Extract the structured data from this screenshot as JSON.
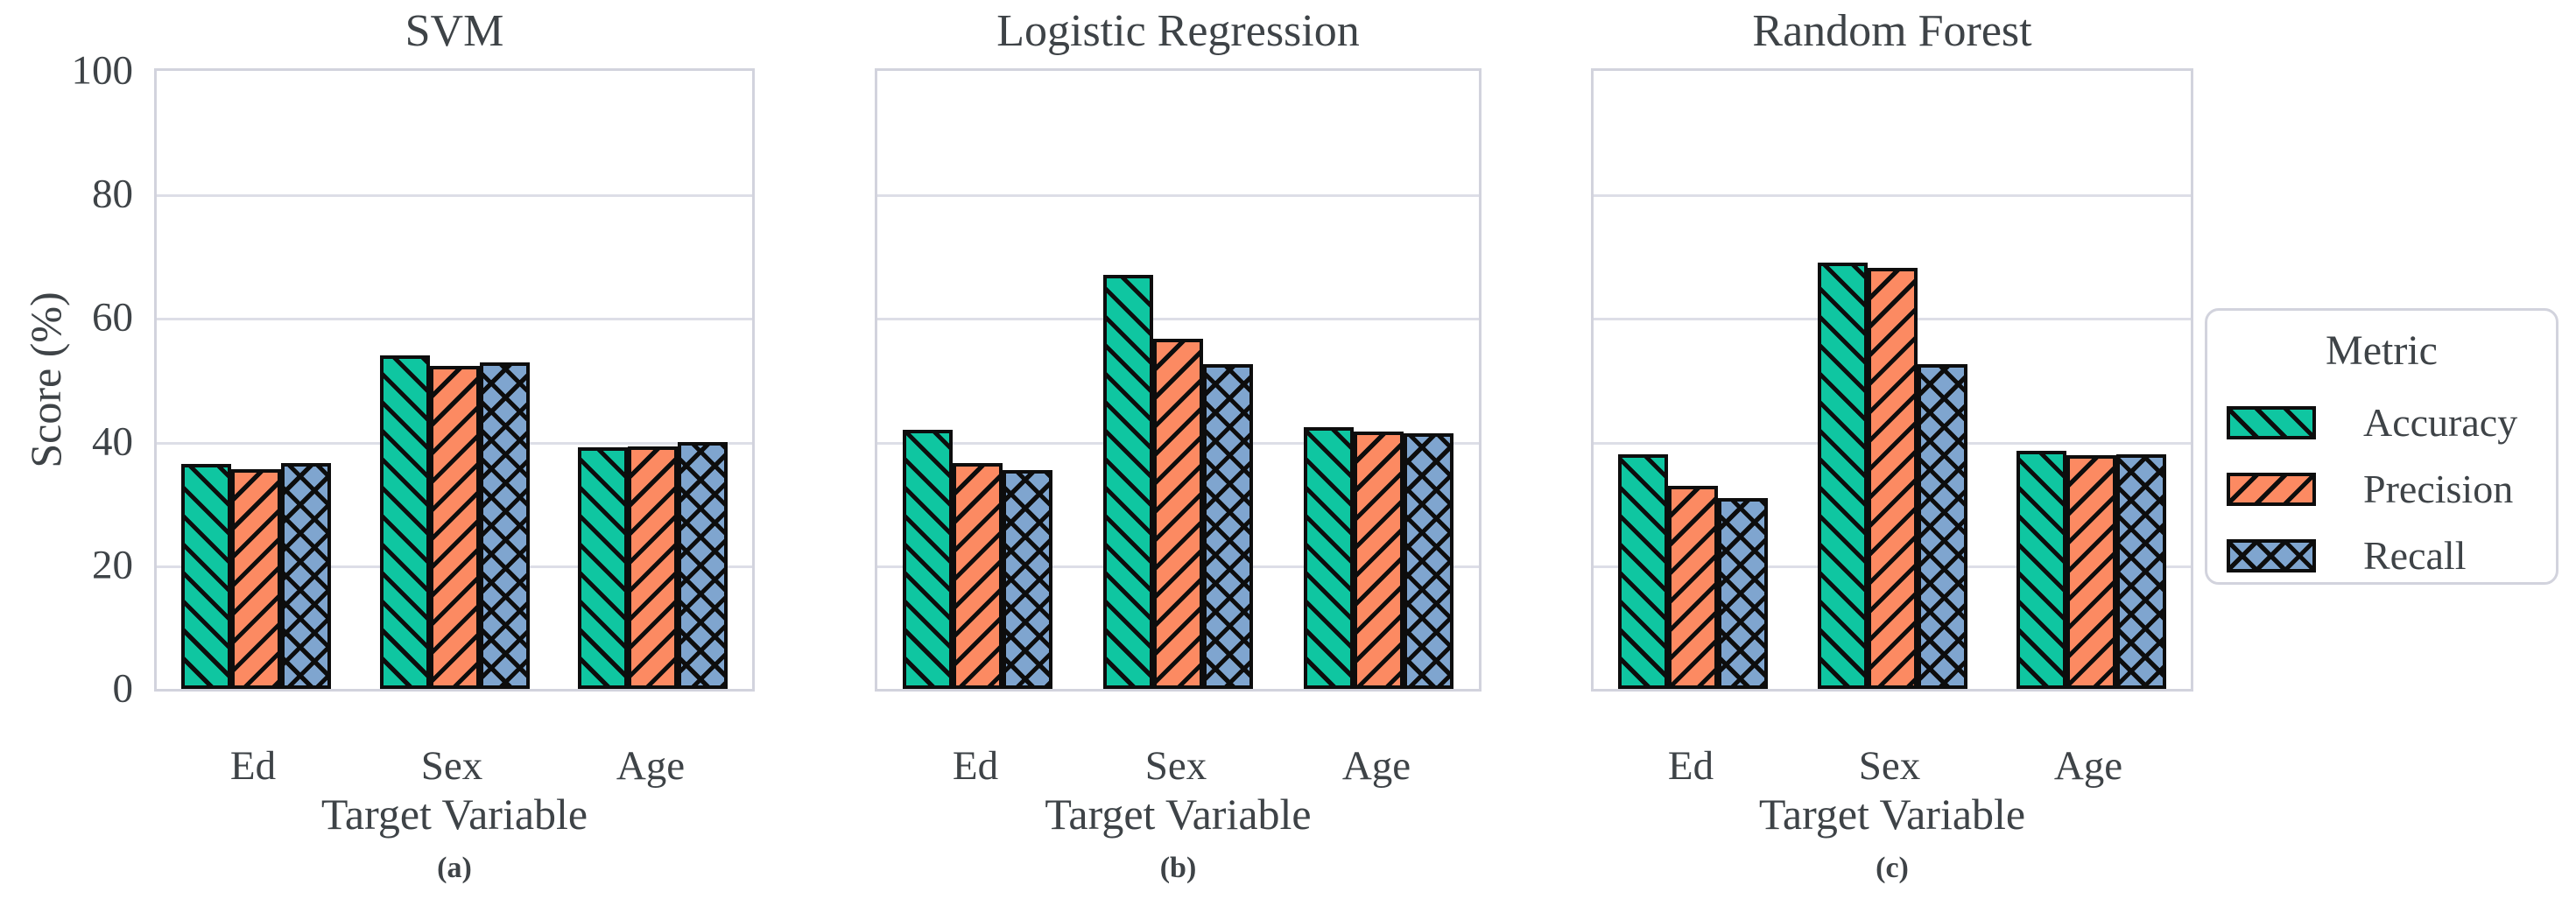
{
  "figure": {
    "ylabel": "Score (%)",
    "legend": {
      "title": "Metric",
      "entries": [
        {
          "label": "Accuracy",
          "color": "#0fc6a1",
          "hatch": "fwd"
        },
        {
          "label": "Precision",
          "color": "#fc8a62",
          "hatch": "back"
        },
        {
          "label": "Recall",
          "color": "#7fa5cf",
          "hatch": "cross"
        }
      ]
    },
    "colors": {
      "grid": "#dddee7",
      "frame": "#d2d3dd",
      "text": "#3e4347",
      "bar_edge": "#0d0d0d"
    }
  },
  "chart_data": [
    {
      "type": "bar",
      "title": "SVM",
      "caption": "(a)",
      "xlabel": "Target Variable",
      "ylabel": "Score (%)",
      "categories": [
        "Ed",
        "Sex",
        "Age"
      ],
      "y_ticks": [
        0,
        20,
        40,
        60,
        80,
        100
      ],
      "ylim": [
        0,
        100
      ],
      "grid": true,
      "legend_position": "right-of-figure",
      "series": [
        {
          "name": "Accuracy",
          "values": [
            36.4,
            53.9,
            39.1
          ]
        },
        {
          "name": "Precision",
          "values": [
            35.6,
            52.2,
            39.2
          ]
        },
        {
          "name": "Recall",
          "values": [
            36.5,
            52.9,
            39.9
          ]
        }
      ]
    },
    {
      "type": "bar",
      "title": "Logistic Regression",
      "caption": "(b)",
      "xlabel": "Target Variable",
      "ylabel": "Score (%)",
      "categories": [
        "Ed",
        "Sex",
        "Age"
      ],
      "y_ticks": [
        0,
        20,
        40,
        60,
        80,
        100
      ],
      "ylim": [
        0,
        100
      ],
      "grid": true,
      "series": [
        {
          "name": "Accuracy",
          "values": [
            41.9,
            67.0,
            42.3
          ]
        },
        {
          "name": "Precision",
          "values": [
            36.5,
            56.7,
            41.6
          ]
        },
        {
          "name": "Recall",
          "values": [
            35.4,
            52.6,
            41.3
          ]
        }
      ]
    },
    {
      "type": "bar",
      "title": "Random Forest",
      "caption": "(c)",
      "xlabel": "Target Variable",
      "ylabel": "Score (%)",
      "categories": [
        "Ed",
        "Sex",
        "Age"
      ],
      "y_ticks": [
        0,
        20,
        40,
        60,
        80,
        100
      ],
      "ylim": [
        0,
        100
      ],
      "grid": true,
      "series": [
        {
          "name": "Accuracy",
          "values": [
            37.9,
            69.0,
            38.5
          ]
        },
        {
          "name": "Precision",
          "values": [
            32.9,
            68.1,
            37.8
          ]
        },
        {
          "name": "Recall",
          "values": [
            30.9,
            52.6,
            37.9
          ]
        }
      ]
    }
  ]
}
